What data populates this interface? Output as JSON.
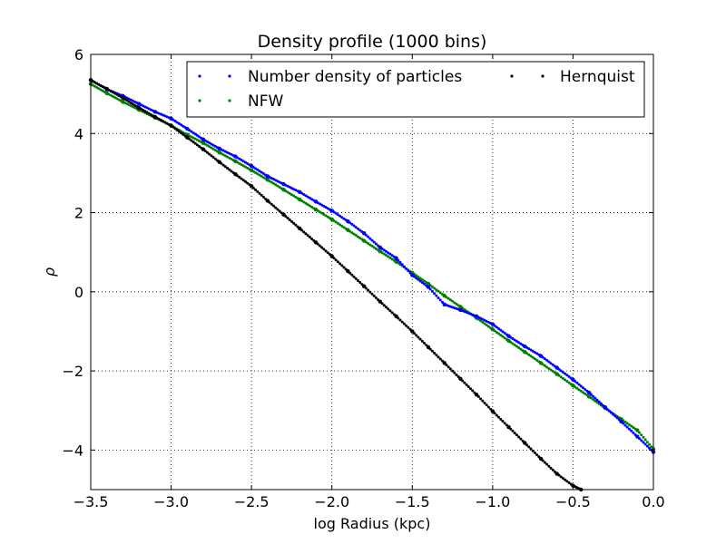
{
  "chart_data": {
    "type": "scatter",
    "title": "Density profile (1000 bins)",
    "xlabel": "log Radius (kpc)",
    "ylabel": "ρ",
    "xlim": [
      -3.5,
      0.0
    ],
    "ylim": [
      -5,
      6
    ],
    "x_ticks": [
      -3.5,
      -3.0,
      -2.5,
      -2.0,
      -1.5,
      -1.0,
      -0.5,
      0.0
    ],
    "x_tick_labels": [
      "−3.5",
      "−3.0",
      "−2.5",
      "−2.0",
      "−1.5",
      "−1.0",
      "−0.5",
      "0.0"
    ],
    "y_ticks": [
      -4,
      -2,
      0,
      2,
      4,
      6
    ],
    "y_tick_labels": [
      "−4",
      "−2",
      "0",
      "2",
      "4",
      "6"
    ],
    "grid": true,
    "legend_position": "top-right",
    "legend_columns": 2,
    "series": [
      {
        "name": "Number density of particles",
        "color": "#0000ff",
        "x": [
          -3.5,
          -3.4,
          -3.3,
          -3.2,
          -3.1,
          -3.0,
          -2.9,
          -2.8,
          -2.7,
          -2.6,
          -2.5,
          -2.4,
          -2.3,
          -2.2,
          -2.1,
          -2.0,
          -1.9,
          -1.8,
          -1.7,
          -1.6,
          -1.5,
          -1.4,
          -1.3,
          -1.2,
          -1.1,
          -1.0,
          -0.9,
          -0.8,
          -0.7,
          -0.6,
          -0.5,
          -0.4,
          -0.3,
          -0.2,
          -0.1,
          0.0
        ],
        "y": [
          5.35,
          5.12,
          4.95,
          4.75,
          4.55,
          4.38,
          4.12,
          3.85,
          3.62,
          3.42,
          3.18,
          2.92,
          2.72,
          2.52,
          2.28,
          2.05,
          1.78,
          1.48,
          1.12,
          0.85,
          0.42,
          0.12,
          -0.32,
          -0.46,
          -0.62,
          -0.82,
          -1.12,
          -1.38,
          -1.62,
          -1.92,
          -2.22,
          -2.55,
          -2.92,
          -3.28,
          -3.66,
          -4.05
        ]
      },
      {
        "name": "NFW",
        "color": "#008000",
        "x": [
          -3.5,
          -3.4,
          -3.3,
          -3.2,
          -3.1,
          -3.0,
          -2.9,
          -2.8,
          -2.7,
          -2.6,
          -2.5,
          -2.4,
          -2.3,
          -2.2,
          -2.1,
          -2.0,
          -1.9,
          -1.8,
          -1.7,
          -1.6,
          -1.5,
          -1.4,
          -1.3,
          -1.2,
          -1.1,
          -1.0,
          -0.9,
          -0.8,
          -0.7,
          -0.6,
          -0.5,
          -0.4,
          -0.3,
          -0.2,
          -0.1,
          0.0
        ],
        "y": [
          5.25,
          5.02,
          4.8,
          4.6,
          4.4,
          4.2,
          3.97,
          3.76,
          3.52,
          3.3,
          3.07,
          2.83,
          2.58,
          2.33,
          2.08,
          1.83,
          1.56,
          1.29,
          1.02,
          0.76,
          0.48,
          0.2,
          -0.1,
          -0.38,
          -0.66,
          -0.95,
          -1.24,
          -1.52,
          -1.8,
          -2.08,
          -2.37,
          -2.65,
          -2.94,
          -3.22,
          -3.5,
          -3.98
        ]
      },
      {
        "name": "Hernquist",
        "color": "#000000",
        "x": [
          -3.5,
          -3.4,
          -3.3,
          -3.2,
          -3.1,
          -3.0,
          -2.9,
          -2.8,
          -2.7,
          -2.6,
          -2.5,
          -2.4,
          -2.3,
          -2.2,
          -2.1,
          -2.0,
          -1.9,
          -1.8,
          -1.7,
          -1.6,
          -1.5,
          -1.4,
          -1.3,
          -1.2,
          -1.1,
          -1.0,
          -0.9,
          -0.8,
          -0.7,
          -0.6,
          -0.5,
          -0.45
        ],
        "y": [
          5.35,
          5.13,
          4.9,
          4.65,
          4.42,
          4.2,
          3.9,
          3.6,
          3.28,
          2.97,
          2.67,
          2.3,
          1.95,
          1.6,
          1.25,
          0.9,
          0.52,
          0.14,
          -0.25,
          -0.62,
          -1.0,
          -1.4,
          -1.8,
          -2.2,
          -2.6,
          -3.02,
          -3.42,
          -3.82,
          -4.22,
          -4.6,
          -4.9,
          -5.0
        ]
      }
    ]
  }
}
